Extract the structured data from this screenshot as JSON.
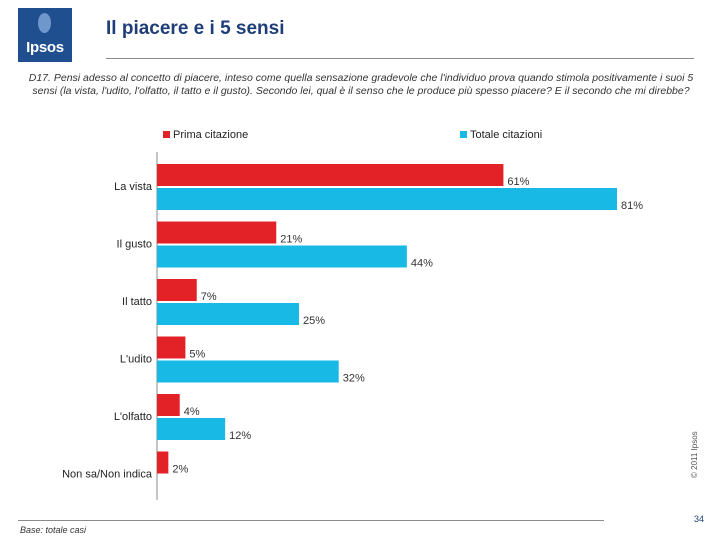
{
  "logo": {
    "text": "Ipsos"
  },
  "header": {
    "title": "Il piacere e i 5 sensi"
  },
  "question": "D17. Pensi adesso al concetto di piacere, inteso come quella sensazione gradevole che l'individuo prova quando stimola positivamente i suoi 5 sensi (la vista, l'udito, l'olfatto, il tatto e il gusto). Secondo lei, qual è il senso che le produce più spesso piacere? E il secondo che mi direbbe?",
  "copyright": "© 2011 Ipsos",
  "footer": {
    "base": "Base: totale casi",
    "page": "34"
  },
  "colors": {
    "prima": "#e32228",
    "totale": "#19b9e6"
  },
  "chart_data": {
    "type": "bar",
    "orientation": "horizontal",
    "categories": [
      "La vista",
      "Il gusto",
      "Il tatto",
      "L'udito",
      "L'olfatto",
      "Non sa/Non indica"
    ],
    "series": [
      {
        "name": "Prima citazione",
        "values": [
          61,
          21,
          7,
          5,
          4,
          2
        ]
      },
      {
        "name": "Totale citazioni",
        "values": [
          81,
          44,
          25,
          32,
          12,
          null
        ]
      }
    ],
    "value_suffix": "%",
    "legend": "top",
    "xlim": [
      0,
      81
    ]
  }
}
